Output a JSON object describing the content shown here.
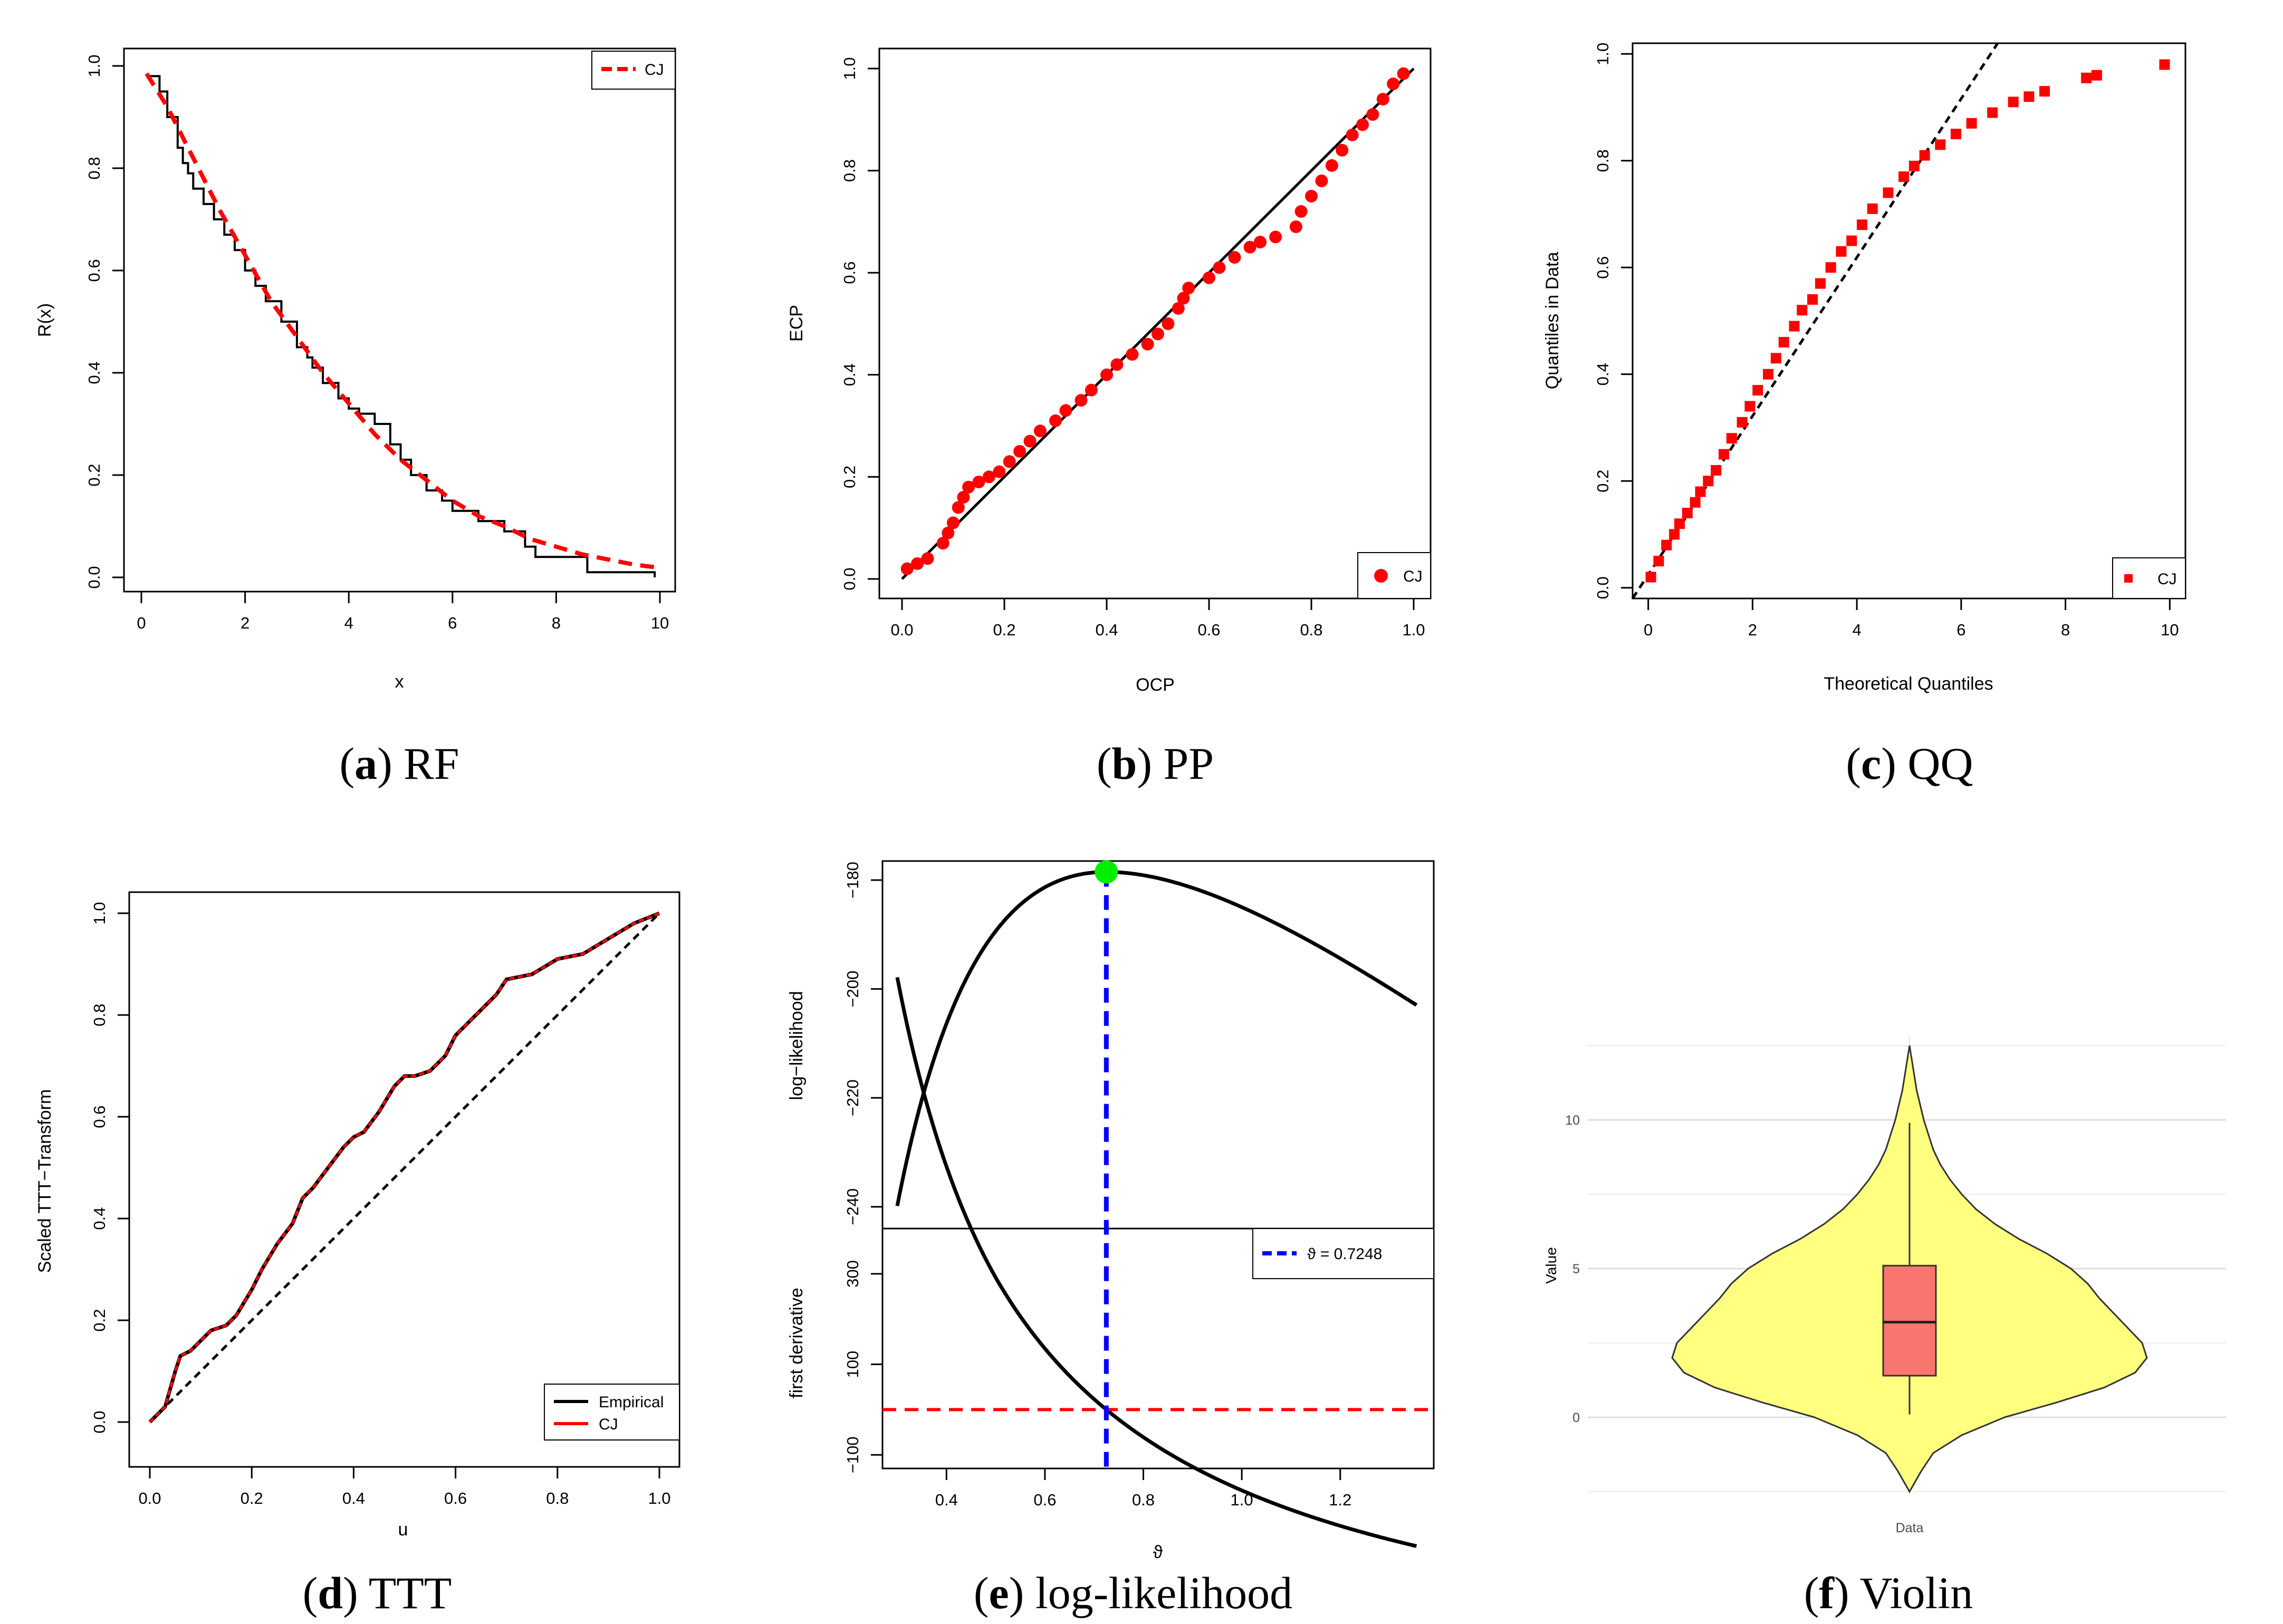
{
  "figure": {
    "panels": [
      {
        "letter": "a",
        "caption": "RF"
      },
      {
        "letter": "b",
        "caption": "PP"
      },
      {
        "letter": "c",
        "caption": "QQ"
      },
      {
        "letter": "d",
        "caption": "TTT"
      },
      {
        "letter": "e",
        "caption": "log-likelihood"
      },
      {
        "letter": "f",
        "caption": "Violin"
      }
    ]
  },
  "colors": {
    "red": "#ff0000",
    "black": "#000000",
    "blue": "#0000ff",
    "green": "#00ee00",
    "violin_fill": "#ffff80",
    "box_fill": "#f8766d"
  },
  "chart_data": [
    {
      "id": "rf",
      "type": "line",
      "title": "",
      "xlabel": "x",
      "ylabel": "R(x)",
      "xlim": [
        0,
        10
      ],
      "ylim": [
        0,
        1
      ],
      "xticks": [
        "0",
        "2",
        "4",
        "6",
        "8",
        "10"
      ],
      "yticks": [
        "0.0",
        "0.2",
        "0.4",
        "0.6",
        "0.8",
        "1.0"
      ],
      "legend": {
        "position": "top-right",
        "entries": [
          "CJ"
        ]
      },
      "series": [
        {
          "name": "Empirical",
          "style": "step",
          "x": [
            0.1,
            0.35,
            0.5,
            0.7,
            0.8,
            0.9,
            1.0,
            1.2,
            1.4,
            1.6,
            1.8,
            2.0,
            2.2,
            2.4,
            2.7,
            3.0,
            3.2,
            3.3,
            3.5,
            3.8,
            4.0,
            4.2,
            4.5,
            4.8,
            5.0,
            5.2,
            5.5,
            5.8,
            6.0,
            6.5,
            7.0,
            7.4,
            7.6,
            8.0,
            8.6,
            9.5,
            9.9
          ],
          "y": [
            0.98,
            0.95,
            0.9,
            0.84,
            0.81,
            0.79,
            0.76,
            0.73,
            0.7,
            0.67,
            0.64,
            0.6,
            0.57,
            0.54,
            0.5,
            0.45,
            0.43,
            0.41,
            0.38,
            0.35,
            0.33,
            0.32,
            0.3,
            0.26,
            0.23,
            0.2,
            0.17,
            0.15,
            0.13,
            0.11,
            0.09,
            0.06,
            0.04,
            0.04,
            0.01,
            0.01,
            0.0
          ]
        },
        {
          "name": "CJ",
          "style": "dashed",
          "x": [
            0.1,
            0.5,
            1.0,
            1.5,
            2.0,
            2.5,
            3.0,
            3.5,
            4.0,
            4.5,
            5.0,
            5.5,
            6.0,
            6.5,
            7.0,
            7.5,
            8.0,
            8.5,
            9.0,
            9.5,
            9.9
          ],
          "y": [
            0.985,
            0.92,
            0.82,
            0.72,
            0.63,
            0.54,
            0.47,
            0.4,
            0.34,
            0.28,
            0.23,
            0.19,
            0.15,
            0.12,
            0.1,
            0.075,
            0.06,
            0.045,
            0.035,
            0.025,
            0.02
          ]
        }
      ]
    },
    {
      "id": "pp",
      "type": "scatter",
      "title": "",
      "xlabel": "OCP",
      "ylabel": "ECP",
      "xlim": [
        0,
        1
      ],
      "ylim": [
        0,
        1
      ],
      "xticks": [
        "0.0",
        "0.2",
        "0.4",
        "0.6",
        "0.8",
        "1.0"
      ],
      "yticks": [
        "0.0",
        "0.2",
        "0.4",
        "0.6",
        "0.8",
        "1.0"
      ],
      "legend": {
        "position": "bottom-right",
        "entries": [
          "CJ"
        ]
      },
      "reference_line": [
        [
          0,
          0
        ],
        [
          1,
          1
        ]
      ],
      "series": [
        {
          "name": "CJ",
          "x": [
            0.01,
            0.03,
            0.05,
            0.08,
            0.09,
            0.1,
            0.11,
            0.12,
            0.13,
            0.15,
            0.17,
            0.19,
            0.21,
            0.23,
            0.25,
            0.27,
            0.3,
            0.32,
            0.35,
            0.37,
            0.4,
            0.42,
            0.45,
            0.48,
            0.5,
            0.52,
            0.54,
            0.55,
            0.56,
            0.6,
            0.62,
            0.65,
            0.68,
            0.7,
            0.73,
            0.77,
            0.78,
            0.8,
            0.82,
            0.84,
            0.86,
            0.88,
            0.9,
            0.92,
            0.94,
            0.96,
            0.98
          ],
          "y": [
            0.02,
            0.03,
            0.04,
            0.07,
            0.09,
            0.11,
            0.14,
            0.16,
            0.18,
            0.19,
            0.2,
            0.21,
            0.23,
            0.25,
            0.27,
            0.29,
            0.31,
            0.33,
            0.35,
            0.37,
            0.4,
            0.42,
            0.44,
            0.46,
            0.48,
            0.5,
            0.53,
            0.55,
            0.57,
            0.59,
            0.61,
            0.63,
            0.65,
            0.66,
            0.67,
            0.69,
            0.72,
            0.75,
            0.78,
            0.81,
            0.84,
            0.87,
            0.89,
            0.91,
            0.94,
            0.97,
            0.99
          ]
        }
      ]
    },
    {
      "id": "qq",
      "type": "scatter",
      "title": "",
      "xlabel": "Theoretical Quantiles",
      "ylabel": "Quantiles in Data",
      "xlim": [
        -0.3,
        10.3
      ],
      "ylim": [
        -0.02,
        1.02
      ],
      "xticks": [
        "0",
        "2",
        "4",
        "6",
        "8",
        "10"
      ],
      "yticks": [
        "0.0",
        "0.2",
        "0.4",
        "0.6",
        "0.8",
        "1.0"
      ],
      "legend": {
        "position": "bottom-right",
        "entries": [
          "CJ"
        ]
      },
      "reference_line": [
        [
          -0.3,
          -0.02
        ],
        [
          6.7,
          1.02
        ]
      ],
      "series": [
        {
          "name": "CJ",
          "x": [
            0.05,
            0.2,
            0.35,
            0.5,
            0.6,
            0.75,
            0.9,
            1.0,
            1.15,
            1.3,
            1.45,
            1.6,
            1.8,
            1.95,
            2.1,
            2.3,
            2.45,
            2.6,
            2.8,
            2.95,
            3.15,
            3.3,
            3.5,
            3.7,
            3.9,
            4.1,
            4.3,
            4.6,
            4.9,
            5.1,
            5.3,
            5.6,
            5.9,
            6.2,
            6.6,
            7.0,
            7.3,
            7.6,
            8.4,
            8.6,
            9.9
          ],
          "y": [
            0.02,
            0.05,
            0.08,
            0.1,
            0.12,
            0.14,
            0.16,
            0.18,
            0.2,
            0.22,
            0.25,
            0.28,
            0.31,
            0.34,
            0.37,
            0.4,
            0.43,
            0.46,
            0.49,
            0.52,
            0.54,
            0.57,
            0.6,
            0.63,
            0.65,
            0.68,
            0.71,
            0.74,
            0.77,
            0.79,
            0.81,
            0.83,
            0.85,
            0.87,
            0.89,
            0.91,
            0.92,
            0.93,
            0.955,
            0.96,
            0.98
          ]
        }
      ]
    },
    {
      "id": "ttt",
      "type": "line",
      "title": "",
      "xlabel": "u",
      "ylabel": "Scaled TTT−Transform",
      "xlim": [
        0,
        1
      ],
      "ylim": [
        0,
        1
      ],
      "xticks": [
        "0.0",
        "0.2",
        "0.4",
        "0.6",
        "0.8",
        "1.0"
      ],
      "yticks": [
        "0.0",
        "0.2",
        "0.4",
        "0.6",
        "0.8",
        "1.0"
      ],
      "legend": {
        "position": "bottom-right",
        "entries": [
          "Empirical",
          "CJ"
        ]
      },
      "reference_line": [
        [
          0,
          0
        ],
        [
          1,
          1
        ]
      ],
      "series": [
        {
          "name": "Empirical",
          "x": [
            0.0,
            0.03,
            0.05,
            0.06,
            0.08,
            0.1,
            0.12,
            0.15,
            0.17,
            0.2,
            0.22,
            0.25,
            0.28,
            0.3,
            0.32,
            0.35,
            0.38,
            0.4,
            0.42,
            0.45,
            0.48,
            0.5,
            0.52,
            0.55,
            0.58,
            0.6,
            0.62,
            0.65,
            0.68,
            0.7,
            0.75,
            0.8,
            0.85,
            0.9,
            0.95,
            1.0
          ],
          "y": [
            0.0,
            0.03,
            0.1,
            0.13,
            0.14,
            0.16,
            0.18,
            0.19,
            0.21,
            0.26,
            0.3,
            0.35,
            0.39,
            0.44,
            0.46,
            0.5,
            0.54,
            0.56,
            0.57,
            0.61,
            0.66,
            0.68,
            0.68,
            0.69,
            0.72,
            0.76,
            0.78,
            0.81,
            0.84,
            0.87,
            0.88,
            0.91,
            0.92,
            0.95,
            0.98,
            1.0
          ]
        }
      ]
    },
    {
      "id": "loglik",
      "type": "line",
      "title": "",
      "xlabel": "ϑ",
      "xlim": [
        0.27,
        1.39
      ],
      "xticks": [
        "0.4",
        "0.6",
        "0.8",
        "1.0",
        "1.2"
      ],
      "top": {
        "ylabel": "log−likelihood",
        "ylim": [
          -244,
          -176.5
        ],
        "yticks": [
          "−180",
          "−200",
          "−220",
          "−240"
        ]
      },
      "bottom": {
        "ylabel": "first derivative",
        "ylim": [
          -130,
          400
        ],
        "yticks": [
          "300",
          "100",
          "−100"
        ]
      },
      "optimum": {
        "x": 0.7248,
        "y": -178.5
      },
      "legend": {
        "position": "top-right",
        "entries": [
          "ϑ = 0.7248"
        ]
      }
    },
    {
      "id": "violin",
      "type": "violin",
      "title": "",
      "xlabel": "Data",
      "ylabel": "Value",
      "ylim": [
        -2.6,
        12.8
      ],
      "yticks": [
        "0",
        "5",
        "10"
      ],
      "category": "Data",
      "box": {
        "min": 0.1,
        "q1": 1.4,
        "median": 3.2,
        "q3": 5.1,
        "max": 9.9
      },
      "density": {
        "y": [
          -2.5,
          -1.8,
          -1.2,
          -0.6,
          0.0,
          0.5,
          1.0,
          1.5,
          2.0,
          2.5,
          3.0,
          3.5,
          4.0,
          4.5,
          5.0,
          5.5,
          6.0,
          6.5,
          7.0,
          7.5,
          8.0,
          8.5,
          9.0,
          9.5,
          10.0,
          10.5,
          11.0,
          11.5,
          12.0,
          12.5
        ],
        "w": [
          0.0,
          0.05,
          0.1,
          0.22,
          0.4,
          0.62,
          0.82,
          0.95,
          1.0,
          0.98,
          0.92,
          0.86,
          0.8,
          0.75,
          0.68,
          0.58,
          0.46,
          0.36,
          0.28,
          0.22,
          0.17,
          0.13,
          0.1,
          0.08,
          0.06,
          0.045,
          0.03,
          0.02,
          0.01,
          0.0
        ]
      }
    }
  ]
}
